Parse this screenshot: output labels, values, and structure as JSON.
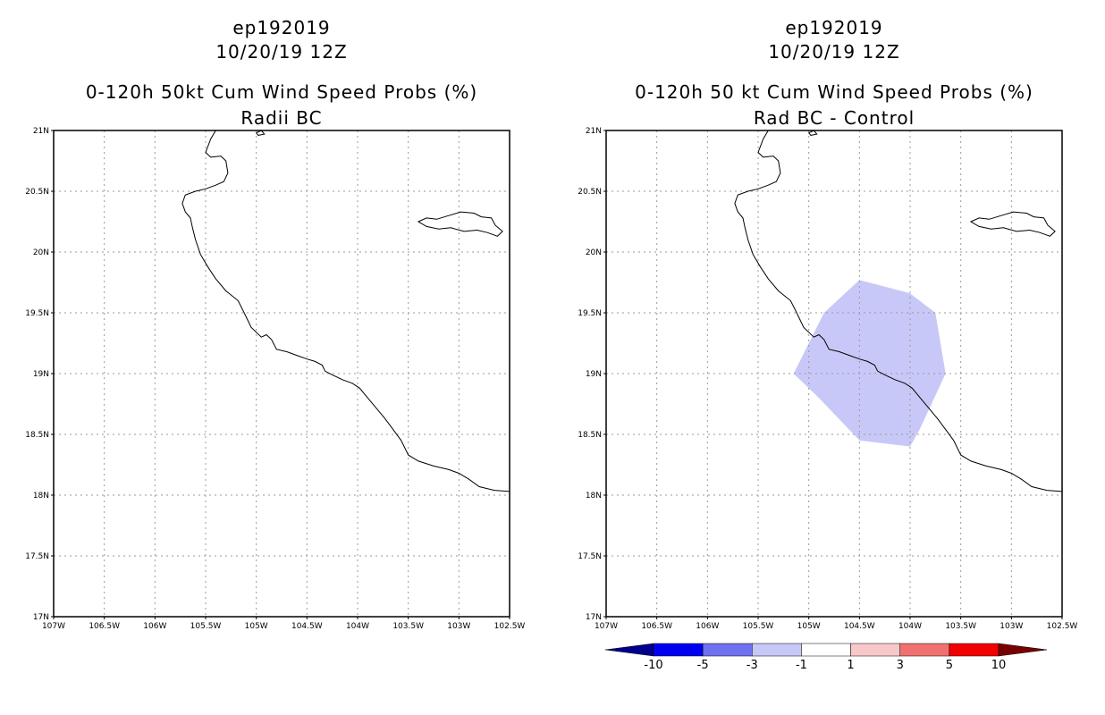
{
  "left_panel": {
    "title_line1": "ep192019",
    "title_line2": "10/20/19 12Z",
    "title_line3": "0-120h 50kt Cum Wind Speed Probs (%)",
    "title_line4": "Radii BC"
  },
  "right_panel": {
    "title_line1": "ep192019",
    "title_line2": "10/20/19 12Z",
    "title_line3": "0-120h 50 kt Cum Wind Speed Probs (%)",
    "title_line4": "Rad BC - Control",
    "shaded_area": {
      "category": "-3 to -1",
      "color": "#c8c8f8",
      "polygon_lonlat": [
        [
          -104.5,
          19.77
        ],
        [
          -104.0,
          19.66
        ],
        [
          -103.75,
          19.5
        ],
        [
          -103.65,
          19.0
        ],
        [
          -103.9,
          18.55
        ],
        [
          -104.0,
          18.4
        ],
        [
          -104.5,
          18.45
        ],
        [
          -104.9,
          18.8
        ],
        [
          -105.15,
          19.0
        ],
        [
          -104.85,
          19.5
        ]
      ]
    }
  },
  "axes": {
    "lon_ticks": [
      {
        "value": -107.0,
        "label": "107W"
      },
      {
        "value": -106.5,
        "label": "106.5W"
      },
      {
        "value": -106.0,
        "label": "106W"
      },
      {
        "value": -105.5,
        "label": "105.5W"
      },
      {
        "value": -105.0,
        "label": "105W"
      },
      {
        "value": -104.5,
        "label": "104.5W"
      },
      {
        "value": -104.0,
        "label": "104W"
      },
      {
        "value": -103.5,
        "label": "103.5W"
      },
      {
        "value": -103.0,
        "label": "103W"
      },
      {
        "value": -102.5,
        "label": "102.5W"
      }
    ],
    "lat_ticks": [
      {
        "value": 17.0,
        "label": "17N"
      },
      {
        "value": 17.5,
        "label": "17.5N"
      },
      {
        "value": 18.0,
        "label": "18N"
      },
      {
        "value": 18.5,
        "label": "18.5N"
      },
      {
        "value": 19.0,
        "label": "19N"
      },
      {
        "value": 19.5,
        "label": "19.5N"
      },
      {
        "value": 20.0,
        "label": "20N"
      },
      {
        "value": 20.5,
        "label": "20.5N"
      },
      {
        "value": 21.0,
        "label": "21N"
      }
    ],
    "lon_range": [
      -107.0,
      -102.5
    ],
    "lat_range": [
      17.0,
      21.0
    ]
  },
  "coastline": [
    [
      -105.4,
      21.0
    ],
    [
      -105.45,
      20.93
    ],
    [
      -105.5,
      20.82
    ],
    [
      -105.45,
      20.78
    ],
    [
      -105.35,
      20.79
    ],
    [
      -105.3,
      20.75
    ],
    [
      -105.28,
      20.65
    ],
    [
      -105.32,
      20.58
    ],
    [
      -105.4,
      20.55
    ],
    [
      -105.5,
      20.52
    ],
    [
      -105.6,
      20.5
    ],
    [
      -105.7,
      20.47
    ],
    [
      -105.73,
      20.4
    ],
    [
      -105.7,
      20.33
    ],
    [
      -105.65,
      20.28
    ],
    [
      -105.63,
      20.2
    ],
    [
      -105.6,
      20.1
    ],
    [
      -105.55,
      19.98
    ],
    [
      -105.48,
      19.88
    ],
    [
      -105.4,
      19.78
    ],
    [
      -105.3,
      19.68
    ],
    [
      -105.18,
      19.6
    ],
    [
      -105.12,
      19.5
    ],
    [
      -105.05,
      19.38
    ],
    [
      -104.95,
      19.3
    ],
    [
      -104.9,
      19.32
    ],
    [
      -104.85,
      19.28
    ],
    [
      -104.8,
      19.2
    ],
    [
      -104.7,
      19.18
    ],
    [
      -104.6,
      19.15
    ],
    [
      -104.5,
      19.12
    ],
    [
      -104.42,
      19.1
    ],
    [
      -104.35,
      19.07
    ],
    [
      -104.32,
      19.02
    ],
    [
      -104.25,
      18.99
    ],
    [
      -104.15,
      18.95
    ],
    [
      -104.05,
      18.92
    ],
    [
      -103.98,
      18.88
    ],
    [
      -103.9,
      18.8
    ],
    [
      -103.82,
      18.72
    ],
    [
      -103.73,
      18.63
    ],
    [
      -103.65,
      18.54
    ],
    [
      -103.57,
      18.45
    ],
    [
      -103.5,
      18.33
    ],
    [
      -103.4,
      18.28
    ],
    [
      -103.25,
      18.24
    ],
    [
      -103.1,
      18.21
    ],
    [
      -103.0,
      18.18
    ],
    [
      -102.9,
      18.13
    ],
    [
      -102.8,
      18.07
    ],
    [
      -102.65,
      18.04
    ],
    [
      -102.5,
      18.03
    ]
  ],
  "islands": [
    [
      [
        -103.4,
        20.25
      ],
      [
        -103.32,
        20.28
      ],
      [
        -103.22,
        20.27
      ],
      [
        -103.1,
        20.3
      ],
      [
        -102.98,
        20.33
      ],
      [
        -102.85,
        20.32
      ],
      [
        -102.78,
        20.29
      ],
      [
        -102.68,
        20.28
      ],
      [
        -102.64,
        20.22
      ],
      [
        -102.57,
        20.17
      ],
      [
        -102.62,
        20.13
      ],
      [
        -102.72,
        20.16
      ],
      [
        -102.82,
        20.18
      ],
      [
        -102.95,
        20.17
      ],
      [
        -103.08,
        20.2
      ],
      [
        -103.2,
        20.19
      ],
      [
        -103.32,
        20.21
      ],
      [
        -103.4,
        20.25
      ]
    ],
    [
      [
        -105.0,
        20.98
      ],
      [
        -104.95,
        21.0
      ],
      [
        -104.92,
        20.97
      ],
      [
        -104.98,
        20.96
      ],
      [
        -105.0,
        20.98
      ]
    ]
  ],
  "colorbar": {
    "labels": [
      "-10",
      "-5",
      "-3",
      "-1",
      "1",
      "3",
      "5",
      "10"
    ],
    "colors": [
      "#00008c",
      "#0000f0",
      "#7070f0",
      "#c8c8f8",
      "#ffffff",
      "#f8c8c8",
      "#f07070",
      "#f00000",
      "#780000"
    ]
  }
}
